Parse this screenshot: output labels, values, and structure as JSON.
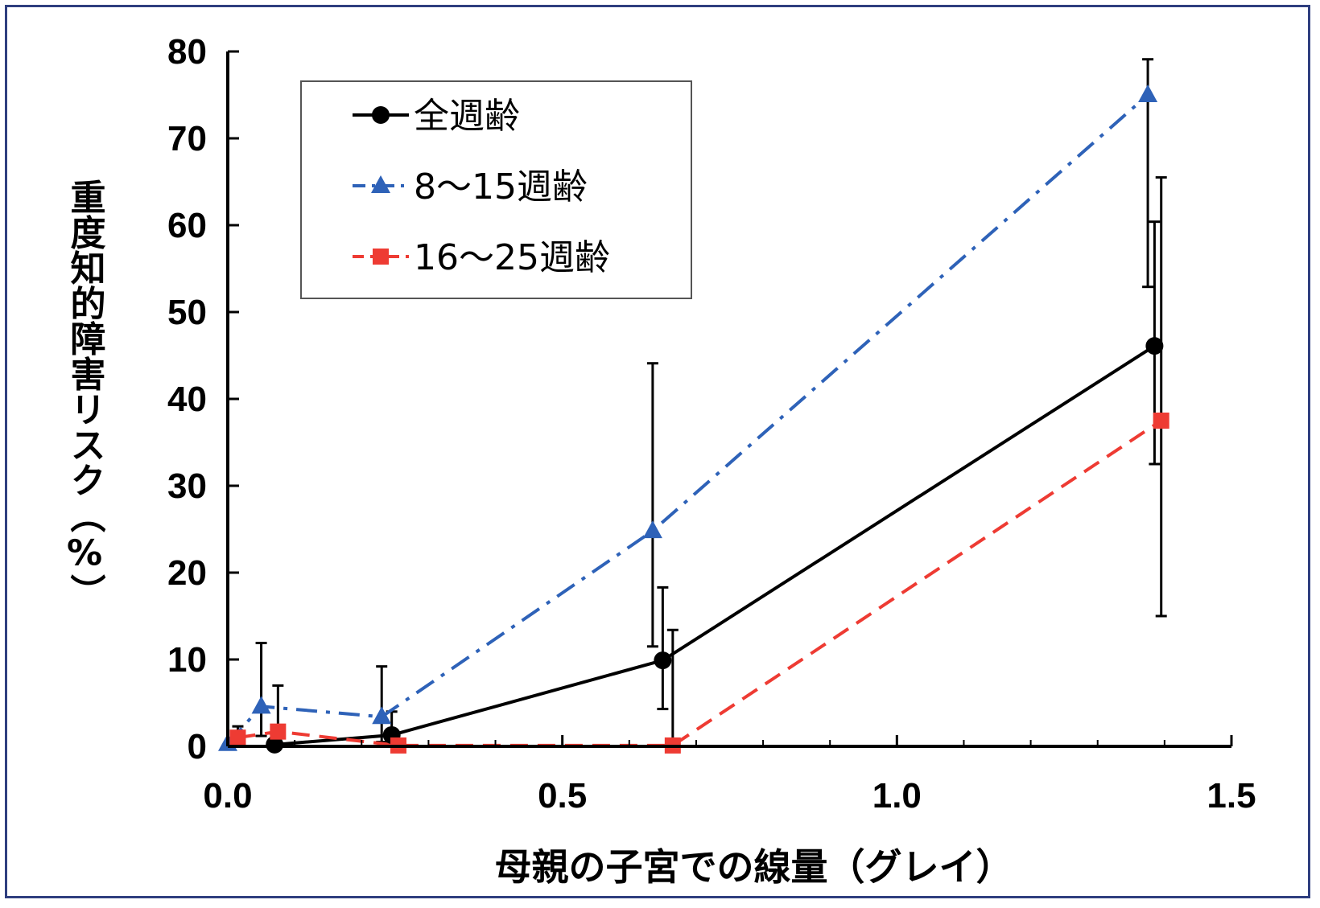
{
  "chart_data": {
    "type": "line",
    "xlabel": "母親の子宮での線量（グレイ）",
    "ylabel": "重度知的障害リスク（%）",
    "xlim": [
      0,
      1.5
    ],
    "ylim": [
      0,
      80
    ],
    "x_ticks": [
      "0.0",
      "0.5",
      "1.0",
      "1.5"
    ],
    "y_ticks": [
      "0",
      "10",
      "20",
      "30",
      "40",
      "50",
      "60",
      "70",
      "80"
    ],
    "legend_position": "top-left",
    "grid": false,
    "series": [
      {
        "name": "全週齢",
        "color": "#000000",
        "marker": "circle",
        "line": "solid",
        "points": [
          {
            "x": 0.07,
            "y": 0.2,
            "lo": 0,
            "hi": 1.5
          },
          {
            "x": 0.245,
            "y": 1.3,
            "lo": 0,
            "hi": 4.0
          },
          {
            "x": 0.65,
            "y": 9.9,
            "lo": 4.3,
            "hi": 18.3
          },
          {
            "x": 1.385,
            "y": 46.1,
            "lo": 32.5,
            "hi": 60.4
          }
        ]
      },
      {
        "name": "8～15週齢",
        "color": "#2e62b8",
        "marker": "triangle",
        "line": "dashdot",
        "points": [
          {
            "x": 0.0,
            "y": 0.3,
            "lo": 0,
            "hi": 0
          },
          {
            "x": 0.05,
            "y": 4.6,
            "lo": 1.2,
            "hi": 11.9
          },
          {
            "x": 0.23,
            "y": 3.4,
            "lo": 0.5,
            "hi": 9.2
          },
          {
            "x": 0.635,
            "y": 24.8,
            "lo": 11.5,
            "hi": 44.1
          },
          {
            "x": 1.375,
            "y": 75.0,
            "lo": 52.9,
            "hi": 79.1
          }
        ]
      },
      {
        "name": "16～25週齢",
        "color": "#ee3b33",
        "marker": "square",
        "line": "dashed",
        "points": [
          {
            "x": 0.015,
            "y": 1.0,
            "lo": 0,
            "hi": 2.3
          },
          {
            "x": 0.075,
            "y": 1.7,
            "lo": 0,
            "hi": 7.0
          },
          {
            "x": 0.255,
            "y": 0.1,
            "lo": 0,
            "hi": 0
          },
          {
            "x": 0.665,
            "y": 0.1,
            "lo": 0,
            "hi": 13.4
          },
          {
            "x": 1.395,
            "y": 37.5,
            "lo": 15.0,
            "hi": 65.5
          }
        ]
      }
    ]
  }
}
